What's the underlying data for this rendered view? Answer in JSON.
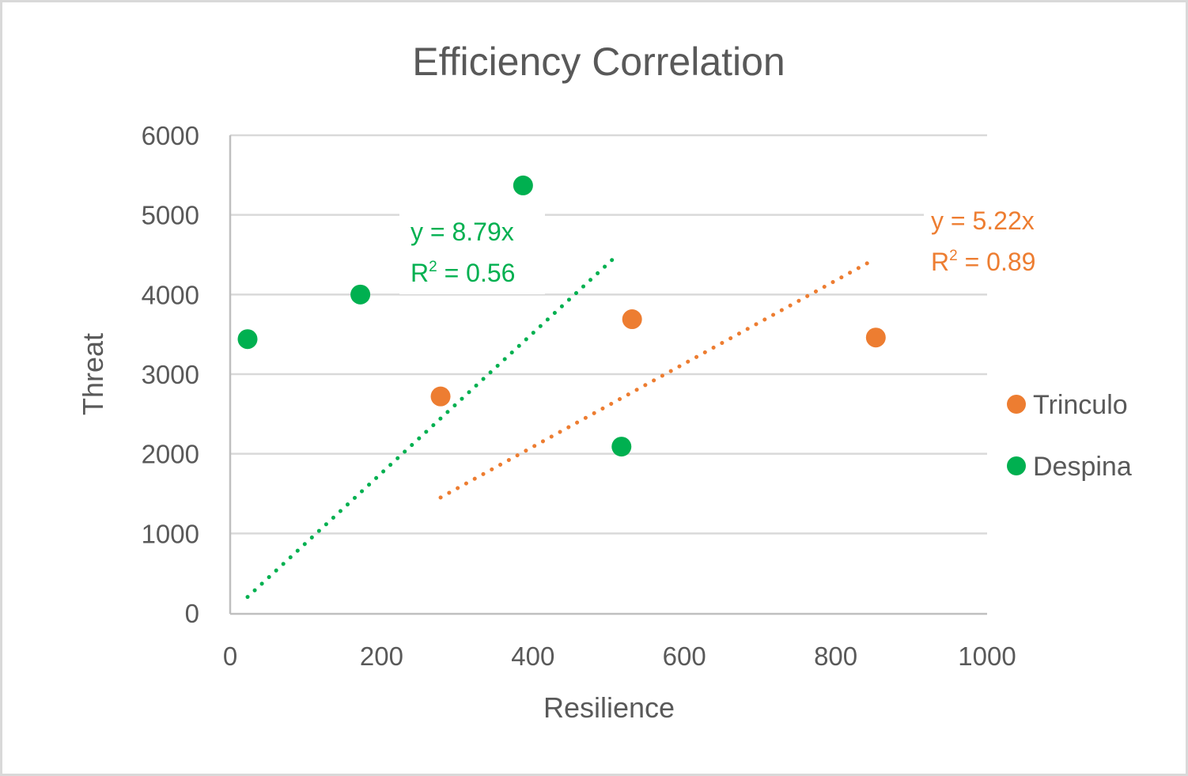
{
  "chart_data": {
    "type": "scatter",
    "title": "Efficiency Correlation",
    "xlabel": "Resilience",
    "ylabel": "Threat",
    "xlim": [
      0,
      1000
    ],
    "ylim": [
      0,
      6000
    ],
    "x_ticks": [
      0,
      200,
      400,
      600,
      800,
      1000
    ],
    "y_ticks": [
      0,
      1000,
      2000,
      3000,
      4000,
      5000,
      6000
    ],
    "x_tick_labels": [
      "0",
      "200",
      "400",
      "600",
      "800",
      "1000"
    ],
    "y_tick_labels": [
      "0",
      "1000",
      "2000",
      "3000",
      "4000",
      "5000",
      "6000"
    ],
    "grid": "horizontal",
    "legend_position": "right",
    "series": [
      {
        "name": "Trinculo",
        "color": "#ed7d31",
        "points": [
          {
            "x": 278,
            "y": 2720
          },
          {
            "x": 531,
            "y": 3690
          },
          {
            "x": 853,
            "y": 3460
          }
        ],
        "trendline": {
          "type": "linear-through-origin",
          "slope": 5.22,
          "x_range": [
            278,
            842
          ],
          "equation": "y = 5.22x",
          "r2_label": "R",
          "r2_sup": "2",
          "r2_value": " = 0.89"
        }
      },
      {
        "name": "Despina",
        "color": "#00b050",
        "points": [
          {
            "x": 23,
            "y": 3440
          },
          {
            "x": 172,
            "y": 4000
          },
          {
            "x": 387,
            "y": 5370
          },
          {
            "x": 517,
            "y": 2090
          }
        ],
        "trendline": {
          "type": "linear-through-origin",
          "slope": 8.79,
          "x_range": [
            23,
            508
          ],
          "equation": "y = 8.79x",
          "r2_label": "R",
          "r2_sup": "2",
          "r2_value": " = 0.56"
        }
      }
    ]
  }
}
